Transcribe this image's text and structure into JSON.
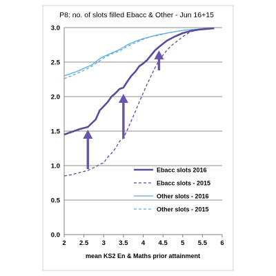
{
  "chart_data": {
    "type": "line",
    "title": "P8: no. of slots filled Ebacc & Other - Jun 16+15",
    "xlabel": "mean KS2 En & Maths prior attainment",
    "ylabel": "",
    "xlim": [
      2,
      6
    ],
    "ylim": [
      0,
      3
    ],
    "x_ticks": [
      "2",
      "2.5",
      "3",
      "3.5",
      "4",
      "4.5",
      "5",
      "5.5",
      "6"
    ],
    "y_ticks": [
      "0.0",
      "0.5",
      "1.0",
      "1.5",
      "2.0",
      "2.5",
      "3.0"
    ],
    "grid": "horizontal",
    "legend_position": "bottom-right",
    "series": [
      {
        "name": "Ebacc slots 2016",
        "color": "#5b4a9b",
        "dash": "solid",
        "x": [
          2.0,
          2.2,
          2.4,
          2.6,
          2.8,
          2.9,
          3.0,
          3.1,
          3.2,
          3.3,
          3.4,
          3.5,
          3.6,
          3.7,
          3.8,
          3.9,
          4.0,
          4.1,
          4.2,
          4.3,
          4.4,
          4.6,
          4.8,
          5.0,
          5.2,
          5.4,
          5.6,
          5.8
        ],
        "y": [
          1.45,
          1.49,
          1.53,
          1.56,
          1.67,
          1.8,
          1.86,
          1.92,
          2.0,
          2.05,
          2.11,
          2.13,
          2.22,
          2.3,
          2.36,
          2.44,
          2.48,
          2.53,
          2.6,
          2.67,
          2.72,
          2.81,
          2.87,
          2.92,
          2.95,
          2.97,
          2.98,
          2.99
        ]
      },
      {
        "name": "Ebacc slots - 2015",
        "color": "#5b4a9b",
        "dash": "dashed",
        "x": [
          2.0,
          2.2,
          2.4,
          2.6,
          2.7,
          2.8,
          2.9,
          3.0,
          3.1,
          3.2,
          3.3,
          3.4,
          3.5,
          3.6,
          3.7,
          3.8,
          3.9,
          4.0,
          4.1,
          4.2,
          4.3,
          4.4,
          4.5,
          4.6,
          4.7,
          4.8,
          4.9,
          5.0,
          5.2,
          5.4,
          5.6,
          5.8
        ],
        "y": [
          0.85,
          0.87,
          0.9,
          0.93,
          0.96,
          0.98,
          1.02,
          1.04,
          1.12,
          1.18,
          1.25,
          1.35,
          1.4,
          1.52,
          1.65,
          1.78,
          1.92,
          2.05,
          2.18,
          2.3,
          2.42,
          2.52,
          2.6,
          2.67,
          2.73,
          2.78,
          2.82,
          2.87,
          2.94,
          2.97,
          2.98,
          2.99
        ]
      },
      {
        "name": "Other slots - 2016",
        "color": "#5aabdc",
        "dash": "solid",
        "x": [
          2.0,
          2.3,
          2.5,
          2.7,
          2.9,
          3.0,
          3.2,
          3.4,
          3.6,
          3.8,
          4.0,
          4.2,
          4.4,
          4.6,
          4.8,
          5.0,
          5.2,
          5.4,
          5.6,
          5.8
        ],
        "y": [
          2.3,
          2.36,
          2.41,
          2.46,
          2.55,
          2.58,
          2.63,
          2.68,
          2.75,
          2.8,
          2.84,
          2.87,
          2.9,
          2.92,
          2.94,
          2.96,
          2.97,
          2.98,
          2.99,
          2.99
        ]
      },
      {
        "name": "Other slots - 2015",
        "color": "#5aabdc",
        "dash": "dashed",
        "x": [
          2.0,
          2.3,
          2.5,
          2.7,
          2.9,
          3.0,
          3.2,
          3.4,
          3.6,
          3.8,
          4.0,
          4.2,
          4.4,
          4.6,
          4.8,
          5.0,
          5.2,
          5.4,
          5.6,
          5.8
        ],
        "y": [
          2.26,
          2.33,
          2.38,
          2.44,
          2.52,
          2.56,
          2.62,
          2.66,
          2.73,
          2.78,
          2.83,
          2.87,
          2.89,
          2.92,
          2.94,
          2.96,
          2.97,
          2.98,
          2.99,
          2.99
        ]
      }
    ],
    "arrows": [
      {
        "color": "#6a55ad",
        "x": 2.6,
        "y_from": 0.95,
        "y_to": 1.52
      },
      {
        "color": "#6a55ad",
        "x": 3.5,
        "y_from": 1.39,
        "y_to": 2.04
      },
      {
        "color": "#6a55ad",
        "x": 4.4,
        "y_from": 2.38,
        "y_to": 2.67
      }
    ]
  }
}
